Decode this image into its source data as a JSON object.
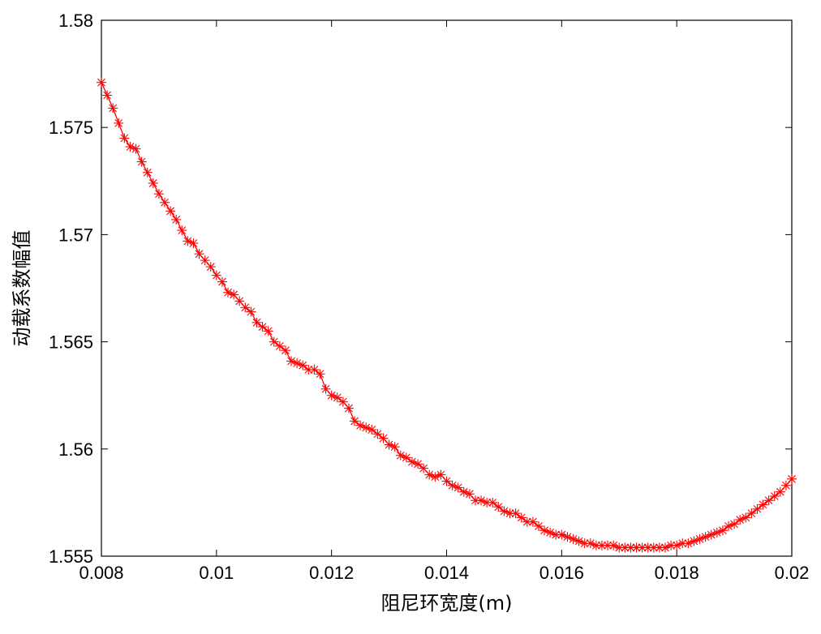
{
  "chart_data": {
    "type": "line",
    "title": "",
    "xlabel": "阻尼环宽度(m)",
    "ylabel": "动载系数幅值",
    "xlim": [
      0.008,
      0.02
    ],
    "ylim": [
      1.555,
      1.58
    ],
    "xticks": [
      0.008,
      0.01,
      0.012,
      0.014,
      0.016,
      0.018,
      0.02
    ],
    "xtick_labels": [
      "0.008",
      "0.01",
      "0.012",
      "0.014",
      "0.016",
      "0.018",
      "0.02"
    ],
    "yticks": [
      1.555,
      1.56,
      1.565,
      1.57,
      1.575,
      1.58
    ],
    "ytick_labels": [
      "1.555",
      "1.56",
      "1.565",
      "1.57",
      "1.575",
      "1.58"
    ],
    "grid": false,
    "legend": false,
    "series": [
      {
        "color": "#ff0000",
        "marker": "asterisk",
        "x": [
          0.008,
          0.0081,
          0.0082,
          0.0083,
          0.0084,
          0.0085,
          0.0086,
          0.0087,
          0.0088,
          0.0089,
          0.009,
          0.0091,
          0.0092,
          0.0093,
          0.0094,
          0.0095,
          0.0096,
          0.0097,
          0.0098,
          0.0099,
          0.01,
          0.0101,
          0.0102,
          0.0103,
          0.0104,
          0.0105,
          0.0106,
          0.0107,
          0.0108,
          0.0109,
          0.011,
          0.0111,
          0.0112,
          0.0113,
          0.0114,
          0.0115,
          0.0116,
          0.0117,
          0.0118,
          0.0119,
          0.012,
          0.0121,
          0.0122,
          0.0123,
          0.0124,
          0.0125,
          0.0126,
          0.0127,
          0.0128,
          0.0129,
          0.013,
          0.0131,
          0.0132,
          0.0133,
          0.0134,
          0.0135,
          0.0136,
          0.0137,
          0.0138,
          0.0139,
          0.014,
          0.0141,
          0.0142,
          0.0143,
          0.0144,
          0.0145,
          0.0146,
          0.0147,
          0.0148,
          0.0149,
          0.015,
          0.0151,
          0.0152,
          0.0153,
          0.0154,
          0.0155,
          0.0156,
          0.0157,
          0.0158,
          0.0159,
          0.016,
          0.0161,
          0.0162,
          0.0163,
          0.0164,
          0.0165,
          0.0166,
          0.0167,
          0.0168,
          0.0169,
          0.017,
          0.0171,
          0.0172,
          0.0173,
          0.0174,
          0.0175,
          0.0176,
          0.0177,
          0.0178,
          0.0179,
          0.018,
          0.0181,
          0.0182,
          0.0183,
          0.0184,
          0.0185,
          0.0186,
          0.0187,
          0.0188,
          0.0189,
          0.019,
          0.0191,
          0.0192,
          0.0193,
          0.0194,
          0.0195,
          0.0196,
          0.0197,
          0.0198,
          0.0199,
          0.02
        ],
        "y": [
          1.5771,
          1.5765,
          1.5759,
          1.5752,
          1.5745,
          1.5741,
          1.574,
          1.5734,
          1.5729,
          1.5724,
          1.5719,
          1.5715,
          1.5711,
          1.5707,
          1.5702,
          1.5697,
          1.5696,
          1.5691,
          1.5688,
          1.5685,
          1.5681,
          1.5678,
          1.5673,
          1.5672,
          1.5669,
          1.5666,
          1.5664,
          1.5659,
          1.5657,
          1.5655,
          1.565,
          1.5648,
          1.5646,
          1.5641,
          1.564,
          1.5639,
          1.5637,
          1.5637,
          1.5635,
          1.5628,
          1.5625,
          1.5624,
          1.5622,
          1.5619,
          1.5613,
          1.5611,
          1.561,
          1.5609,
          1.5607,
          1.5605,
          1.5602,
          1.5601,
          1.5597,
          1.5596,
          1.5594,
          1.5593,
          1.5591,
          1.5588,
          1.5587,
          1.5588,
          1.5585,
          1.5583,
          1.5582,
          1.558,
          1.5579,
          1.5576,
          1.5576,
          1.5575,
          1.5575,
          1.5573,
          1.5571,
          1.557,
          1.557,
          1.5568,
          1.5566,
          1.5566,
          1.5564,
          1.5562,
          1.5561,
          1.556,
          1.556,
          1.5559,
          1.5558,
          1.5557,
          1.5556,
          1.5556,
          1.5555,
          1.5555,
          1.5555,
          1.5555,
          1.5554,
          1.5554,
          1.5554,
          1.5554,
          1.5554,
          1.5554,
          1.5554,
          1.5554,
          1.5554,
          1.5555,
          1.5555,
          1.5556,
          1.5556,
          1.5557,
          1.5558,
          1.5559,
          1.556,
          1.5561,
          1.5562,
          1.5564,
          1.5565,
          1.5567,
          1.5568,
          1.557,
          1.5572,
          1.5574,
          1.5576,
          1.5578,
          1.558,
          1.5583,
          1.5586
        ]
      }
    ]
  }
}
